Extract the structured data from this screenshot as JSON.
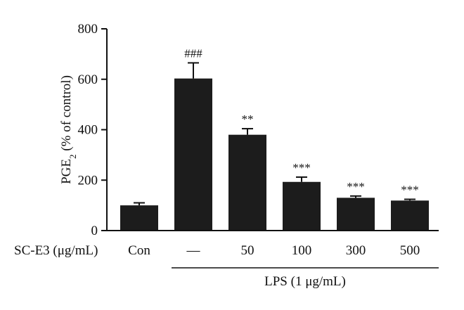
{
  "chart_data": {
    "type": "bar",
    "ylabel_main": "PGE",
    "ylabel_sub": "2",
    "ylabel_rest": " (% of control)",
    "ylim": [
      0,
      800
    ],
    "yticks": [
      "0",
      "200",
      "400",
      "600",
      "800"
    ],
    "treatment_label": "SC-E3 (μg/mL)",
    "categories": [
      "Con",
      "—",
      "50",
      "100",
      "300",
      "500"
    ],
    "values": [
      100,
      603,
      380,
      193,
      130,
      119
    ],
    "errors": [
      10,
      62,
      24,
      19,
      7,
      5
    ],
    "significance": [
      "",
      "###",
      "**",
      "***",
      "***",
      "***"
    ],
    "group_label": "LPS (1 μg/mL)",
    "bar_color": "#1c1c1c",
    "grid": false
  }
}
